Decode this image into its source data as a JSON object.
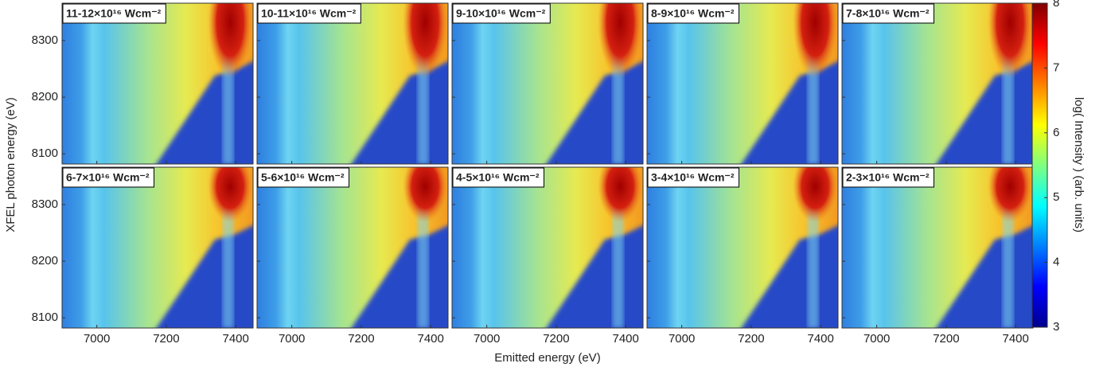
{
  "chart_data": {
    "type": "heatmap",
    "panels": [
      "11-12×10¹⁶ Wcm⁻²",
      "10-11×10¹⁶ Wcm⁻²",
      "9-10×10¹⁶ Wcm⁻²",
      "8-9×10¹⁶ Wcm⁻²",
      "7-8×10¹⁶ Wcm⁻²",
      "6-7×10¹⁶ Wcm⁻²",
      "5-6×10¹⁶ Wcm⁻²",
      "4-5×10¹⁶ Wcm⁻²",
      "3-4×10¹⁶ Wcm⁻²",
      "2-3×10¹⁶ Wcm⁻²"
    ],
    "x_label": "Emitted energy (eV)",
    "y_label": "XFEL photon energy (eV)",
    "xlim": [
      6900,
      7450
    ],
    "xticks": [
      7000,
      7200,
      7400
    ],
    "ylim": [
      8082,
      8366
    ],
    "yticks": [
      8100,
      8200,
      8300
    ],
    "colorbar": {
      "label": "log( Intensity ) (arb. units)",
      "lim": [
        3,
        8
      ],
      "ticks": [
        3,
        4,
        5,
        6,
        7,
        8
      ],
      "colormap": "jet"
    }
  }
}
